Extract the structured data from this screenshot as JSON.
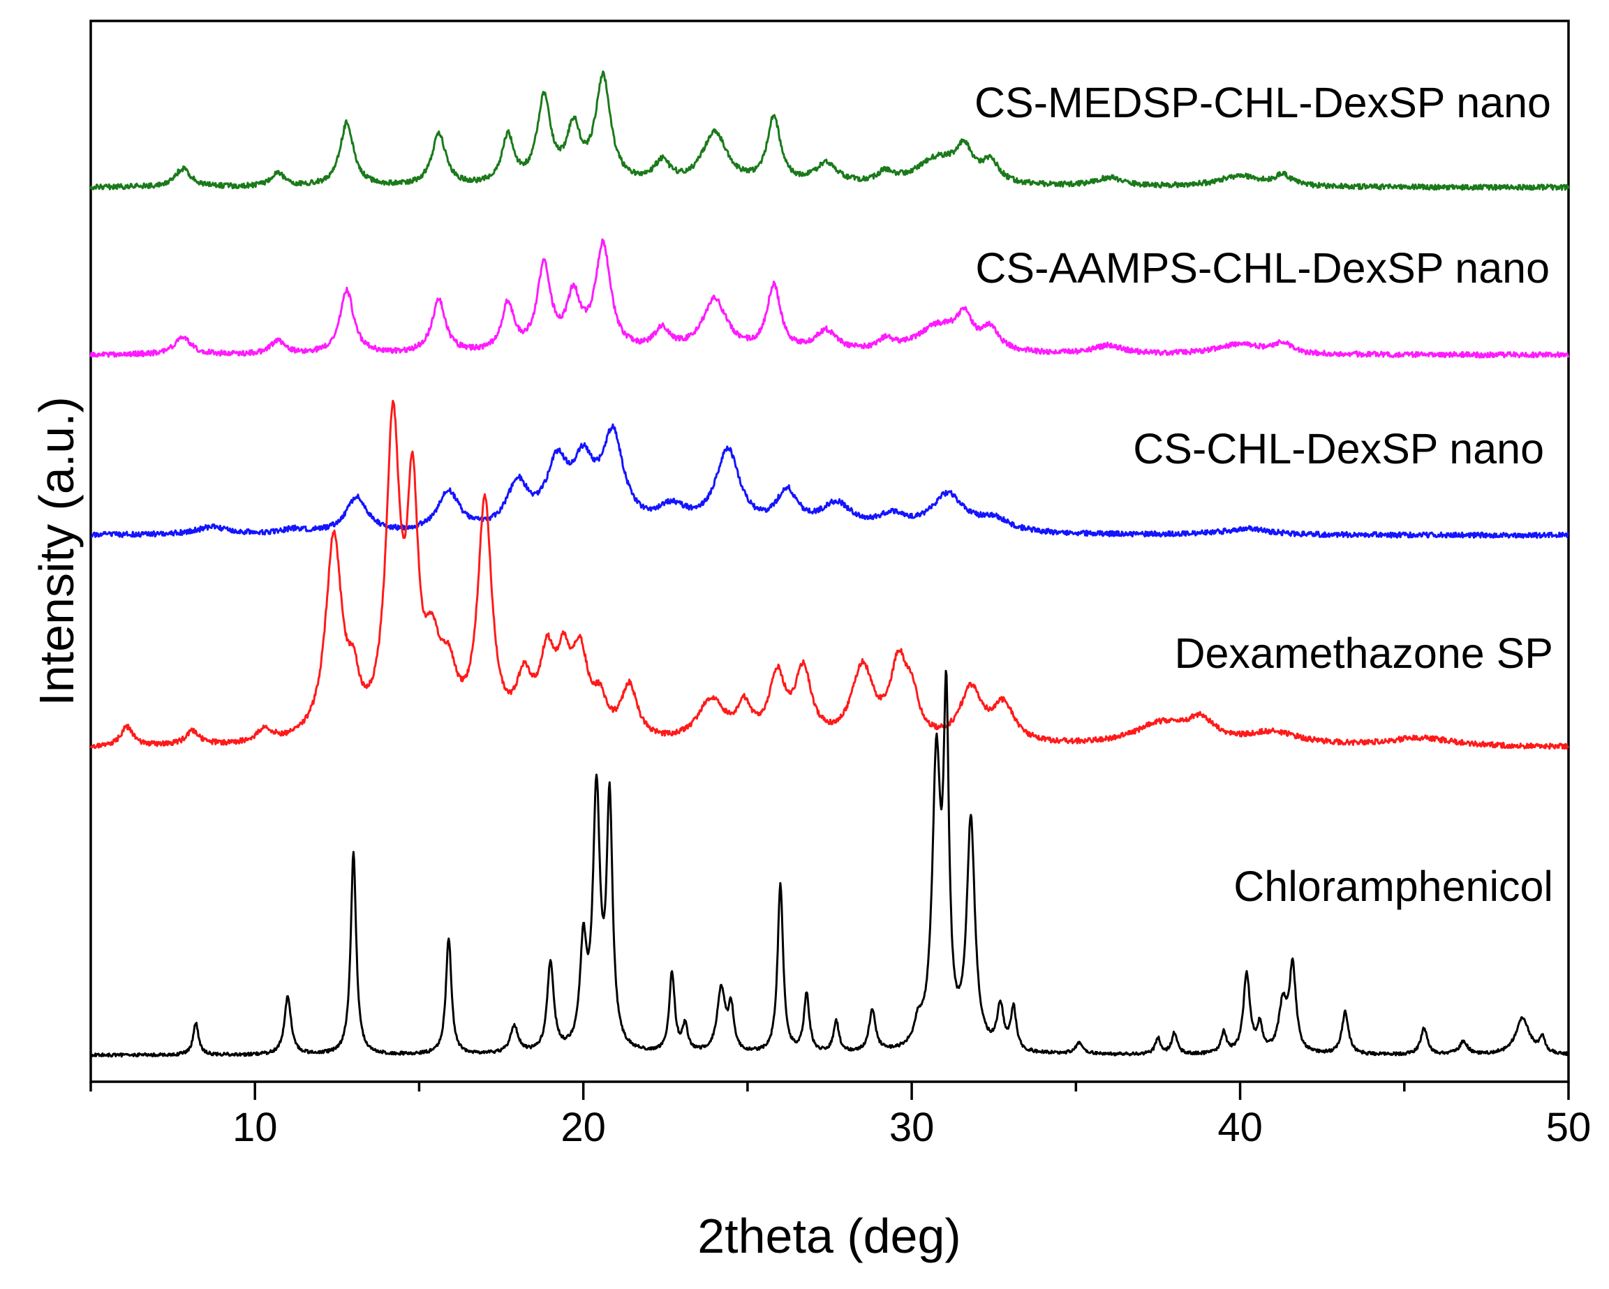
{
  "chart_data": {
    "type": "line",
    "title": "",
    "xlabel": "2theta (deg)",
    "ylabel": "Intensity (a.u.)",
    "xlim": [
      5,
      50
    ],
    "ylim": [
      0,
      100
    ],
    "xticks": [
      10,
      20,
      30,
      40,
      50
    ],
    "grid": false,
    "legend": "labels placed at right above each trace",
    "series": [
      {
        "name": "CS-MEDSP-CHL-DexSP nano",
        "color": "#1a7a1a",
        "baseline": 84.3,
        "noise": 0.25,
        "peaks": [
          [
            7.8,
            1.7,
            0.3
          ],
          [
            10.7,
            1.3,
            0.25
          ],
          [
            12.8,
            6.0,
            0.25
          ],
          [
            15.6,
            5.0,
            0.25
          ],
          [
            17.7,
            4.5,
            0.22
          ],
          [
            18.8,
            8.0,
            0.25
          ],
          [
            19.7,
            5.0,
            0.25
          ],
          [
            20.6,
            10.0,
            0.28
          ],
          [
            22.4,
            2.0,
            0.3
          ],
          [
            24.0,
            5.0,
            0.45
          ],
          [
            25.8,
            6.2,
            0.25
          ],
          [
            27.4,
            2.0,
            0.4
          ],
          [
            29.2,
            1.0,
            0.3
          ],
          [
            30.8,
            2.5,
            0.8
          ],
          [
            31.6,
            2.8,
            0.3
          ],
          [
            32.4,
            2.0,
            0.3
          ],
          [
            36.0,
            0.8,
            0.5
          ],
          [
            40.0,
            1.0,
            0.8
          ],
          [
            41.3,
            1.0,
            0.3
          ]
        ]
      },
      {
        "name": "CS-AAMPS-CHL-DexSP nano",
        "color": "#ff1aff",
        "baseline": 68.5,
        "noise": 0.25,
        "peaks": [
          [
            7.8,
            1.7,
            0.3
          ],
          [
            10.7,
            1.3,
            0.25
          ],
          [
            12.8,
            6.0,
            0.25
          ],
          [
            15.6,
            5.0,
            0.25
          ],
          [
            17.7,
            4.5,
            0.22
          ],
          [
            18.8,
            8.0,
            0.25
          ],
          [
            19.7,
            5.0,
            0.25
          ],
          [
            20.6,
            10.0,
            0.28
          ],
          [
            22.4,
            2.0,
            0.3
          ],
          [
            24.0,
            5.0,
            0.45
          ],
          [
            25.8,
            6.2,
            0.25
          ],
          [
            27.4,
            2.0,
            0.4
          ],
          [
            29.2,
            1.0,
            0.3
          ],
          [
            30.8,
            2.5,
            0.8
          ],
          [
            31.6,
            2.8,
            0.3
          ],
          [
            32.4,
            2.0,
            0.3
          ],
          [
            36.0,
            0.8,
            0.5
          ],
          [
            40.0,
            1.0,
            0.8
          ],
          [
            41.3,
            1.0,
            0.3
          ]
        ]
      },
      {
        "name": "CS-CHL-DexSP nano",
        "color": "#1414ff",
        "baseline": 51.5,
        "noise": 0.25,
        "peaks": [
          [
            8.7,
            0.7,
            0.6
          ],
          [
            11.2,
            0.4,
            0.5
          ],
          [
            13.1,
            3.4,
            0.4
          ],
          [
            15.9,
            3.8,
            0.4
          ],
          [
            18.0,
            4.3,
            0.4
          ],
          [
            19.2,
            5.8,
            0.4
          ],
          [
            20.0,
            5.5,
            0.4
          ],
          [
            20.9,
            8.5,
            0.4
          ],
          [
            22.7,
            2.0,
            0.6
          ],
          [
            24.4,
            7.5,
            0.45
          ],
          [
            26.2,
            3.5,
            0.4
          ],
          [
            27.7,
            2.5,
            0.6
          ],
          [
            29.4,
            1.4,
            0.6
          ],
          [
            31.1,
            3.5,
            0.6
          ],
          [
            32.5,
            1.2,
            0.6
          ],
          [
            40.2,
            0.6,
            0.8
          ]
        ]
      },
      {
        "name": "Dexamethazone SP",
        "color": "#ff1a1a",
        "baseline": 31.5,
        "noise": 0.25,
        "peaks": [
          [
            6.1,
            1.8,
            0.22
          ],
          [
            8.1,
            1.3,
            0.25
          ],
          [
            10.3,
            1.2,
            0.3
          ],
          [
            12.4,
            19.0,
            0.3
          ],
          [
            13.0,
            4.0,
            0.2
          ],
          [
            14.2,
            29.0,
            0.25
          ],
          [
            14.8,
            21.0,
            0.2
          ],
          [
            15.4,
            7.0,
            0.3
          ],
          [
            15.9,
            5.0,
            0.3
          ],
          [
            17.0,
            22.0,
            0.26
          ],
          [
            18.2,
            5.0,
            0.3
          ],
          [
            18.9,
            7.0,
            0.28
          ],
          [
            19.4,
            6.0,
            0.25
          ],
          [
            19.9,
            7.5,
            0.3
          ],
          [
            20.5,
            3.0,
            0.25
          ],
          [
            21.4,
            5.0,
            0.3
          ],
          [
            23.9,
            4.0,
            0.5
          ],
          [
            24.9,
            3.0,
            0.25
          ],
          [
            25.9,
            6.0,
            0.3
          ],
          [
            26.7,
            6.5,
            0.3
          ],
          [
            28.5,
            7.0,
            0.4
          ],
          [
            29.6,
            7.0,
            0.3
          ],
          [
            30.0,
            3.5,
            0.25
          ],
          [
            31.8,
            5.0,
            0.4
          ],
          [
            32.8,
            3.5,
            0.4
          ],
          [
            37.6,
            2.0,
            1.0
          ],
          [
            38.8,
            2.0,
            0.5
          ],
          [
            41.0,
            1.2,
            1.0
          ],
          [
            45.5,
            0.8,
            1.2
          ]
        ]
      },
      {
        "name": "Chloramphenicol",
        "color": "#000000",
        "baseline": 2.5,
        "noise": 0.15,
        "peaks": [
          [
            8.2,
            3.0,
            0.1
          ],
          [
            11.0,
            5.5,
            0.12
          ],
          [
            13.0,
            19.0,
            0.1
          ],
          [
            15.9,
            11.0,
            0.1
          ],
          [
            17.9,
            2.5,
            0.15
          ],
          [
            19.0,
            8.5,
            0.12
          ],
          [
            20.0,
            9.5,
            0.12
          ],
          [
            20.4,
            24.0,
            0.13
          ],
          [
            20.8,
            23.0,
            0.11
          ],
          [
            22.7,
            7.5,
            0.1
          ],
          [
            23.1,
            2.5,
            0.1
          ],
          [
            24.2,
            6.0,
            0.15
          ],
          [
            24.5,
            4.0,
            0.1
          ],
          [
            26.0,
            16.0,
            0.1
          ],
          [
            26.8,
            5.5,
            0.1
          ],
          [
            27.7,
            3.0,
            0.1
          ],
          [
            28.8,
            4.0,
            0.12
          ],
          [
            30.2,
            2.0,
            0.15
          ],
          [
            30.75,
            26.5,
            0.15
          ],
          [
            31.05,
            30.0,
            0.1
          ],
          [
            31.8,
            21.5,
            0.15
          ],
          [
            32.7,
            4.0,
            0.12
          ],
          [
            33.1,
            4.0,
            0.1
          ],
          [
            35.1,
            1.0,
            0.15
          ],
          [
            37.5,
            1.5,
            0.1
          ],
          [
            38.0,
            2.0,
            0.1
          ],
          [
            39.5,
            2.0,
            0.1
          ],
          [
            40.2,
            7.5,
            0.12
          ],
          [
            40.6,
            2.5,
            0.1
          ],
          [
            41.3,
            4.5,
            0.15
          ],
          [
            41.6,
            8.0,
            0.12
          ],
          [
            43.2,
            4.0,
            0.12
          ],
          [
            45.6,
            2.5,
            0.12
          ],
          [
            46.8,
            1.2,
            0.15
          ],
          [
            48.6,
            3.5,
            0.25
          ],
          [
            49.2,
            1.5,
            0.1
          ]
        ]
      }
    ]
  },
  "labels": {
    "tick_10": "10",
    "tick_20": "20",
    "tick_30": "30",
    "tick_40": "40",
    "tick_50": "50"
  }
}
